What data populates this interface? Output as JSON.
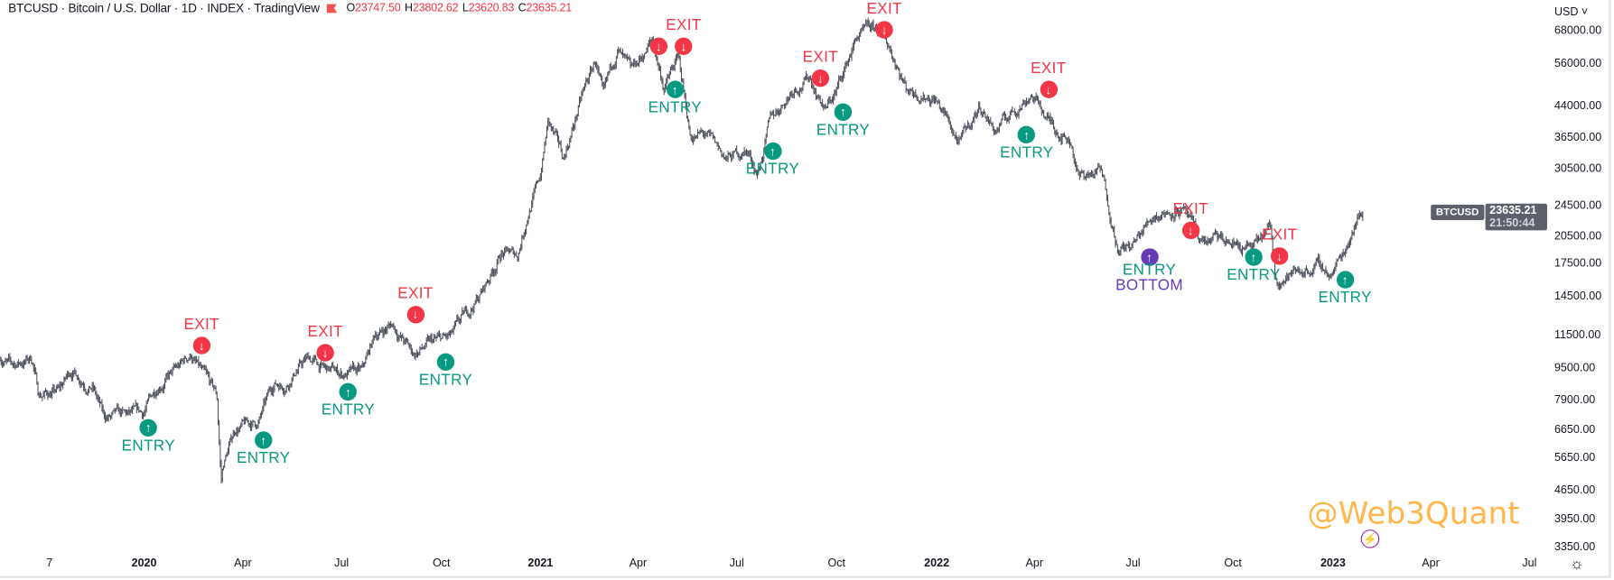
{
  "header": {
    "title": "BTCUSD · Bitcoin / U.S. Dollar · 1D · INDEX · TradingView",
    "open_label": "O",
    "open": "23747.50",
    "high_label": "H",
    "high": "23802.62",
    "low_label": "L",
    "low": "23620.83",
    "close_label": "C",
    "close": "23635.21"
  },
  "price_axis": {
    "currency": "USD ˅",
    "symbol_tag": "BTCUSD",
    "last_price": "23635.21",
    "countdown": "21:50:44"
  },
  "watermark": "@Web3Quant",
  "colors": {
    "up_signal": "#089981",
    "down_signal": "#f23645",
    "bottom_signal": "#673ab7",
    "candles": "#4a4e59",
    "watermark": "#ffb74d"
  },
  "chart_data": {
    "type": "candlestick",
    "title": "BTCUSD · Bitcoin / U.S. Dollar · 1D · INDEX · TradingView",
    "yscale": "log",
    "ylim": [
      3350,
      68000
    ],
    "yticks": [
      "68000.00",
      "56000.00",
      "44000.00",
      "36500.00",
      "30500.00",
      "24500.00",
      "20500.00",
      "17500.00",
      "14500.00",
      "11500.00",
      "9500.00",
      "7900.00",
      "6650.00",
      "5650.00",
      "4650.00",
      "3950.00",
      "3350.00"
    ],
    "ytick_values": [
      68000,
      56000,
      44000,
      36500,
      30500,
      24500,
      20500,
      17500,
      14500,
      11500,
      9500,
      7900,
      6650,
      5650,
      4650,
      3950,
      3350
    ],
    "xticks": [
      {
        "label": "7",
        "date": "2019-10-01",
        "year": false
      },
      {
        "label": "2020",
        "date": "2020-01-01",
        "year": true
      },
      {
        "label": "Apr",
        "date": "2020-04-01",
        "year": false
      },
      {
        "label": "Jul",
        "date": "2020-07-01",
        "year": false
      },
      {
        "label": "Oct",
        "date": "2020-10-01",
        "year": false
      },
      {
        "label": "2021",
        "date": "2021-01-01",
        "year": true
      },
      {
        "label": "Apr",
        "date": "2021-04-01",
        "year": false
      },
      {
        "label": "Jul",
        "date": "2021-07-01",
        "year": false
      },
      {
        "label": "Oct",
        "date": "2021-10-01",
        "year": false
      },
      {
        "label": "2022",
        "date": "2022-01-01",
        "year": true
      },
      {
        "label": "Apr",
        "date": "2022-04-01",
        "year": false
      },
      {
        "label": "Jul",
        "date": "2022-07-01",
        "year": false
      },
      {
        "label": "Oct",
        "date": "2022-10-01",
        "year": false
      },
      {
        "label": "2023",
        "date": "2023-01-01",
        "year": true
      },
      {
        "label": "Apr",
        "date": "2023-04-01",
        "year": false
      },
      {
        "label": "Jul",
        "date": "2023-07-01",
        "year": false
      }
    ],
    "price_path": [
      [
        "2019-08-20",
        10300
      ],
      [
        "2019-09-01",
        9600
      ],
      [
        "2019-09-20",
        10100
      ],
      [
        "2019-09-26",
        8200
      ],
      [
        "2019-10-15",
        8300
      ],
      [
        "2019-10-26",
        9400
      ],
      [
        "2019-11-15",
        8600
      ],
      [
        "2019-11-25",
        7100
      ],
      [
        "2019-12-15",
        7100
      ],
      [
        "2019-12-31",
        7200
      ],
      [
        "2020-01-15",
        8800
      ],
      [
        "2020-02-01",
        9400
      ],
      [
        "2020-02-13",
        10300
      ],
      [
        "2020-02-28",
        8700
      ],
      [
        "2020-03-08",
        8000
      ],
      [
        "2020-03-12",
        4900
      ],
      [
        "2020-03-14",
        5400
      ],
      [
        "2020-03-25",
        6700
      ],
      [
        "2020-04-15",
        6900
      ],
      [
        "2020-04-30",
        8700
      ],
      [
        "2020-05-10",
        8700
      ],
      [
        "2020-05-20",
        9500
      ],
      [
        "2020-06-01",
        10100
      ],
      [
        "2020-06-15",
        9400
      ],
      [
        "2020-07-01",
        9200
      ],
      [
        "2020-07-20",
        9200
      ],
      [
        "2020-08-01",
        11500
      ],
      [
        "2020-08-17",
        12300
      ],
      [
        "2020-09-05",
        10300
      ],
      [
        "2020-09-20",
        10900
      ],
      [
        "2020-10-10",
        11300
      ],
      [
        "2020-10-25",
        13000
      ],
      [
        "2020-11-10",
        15300
      ],
      [
        "2020-11-25",
        18700
      ],
      [
        "2020-12-10",
        18300
      ],
      [
        "2020-12-20",
        23800
      ],
      [
        "2020-12-31",
        29000
      ],
      [
        "2021-01-08",
        40000
      ],
      [
        "2021-01-22",
        32000
      ],
      [
        "2021-02-08",
        46000
      ],
      [
        "2021-02-21",
        57000
      ],
      [
        "2021-02-28",
        45000
      ],
      [
        "2021-03-13",
        61000
      ],
      [
        "2021-03-25",
        52000
      ],
      [
        "2021-04-14",
        64000
      ],
      [
        "2021-04-25",
        49000
      ],
      [
        "2021-05-08",
        58000
      ],
      [
        "2021-05-19",
        37000
      ],
      [
        "2021-06-01",
        37000
      ],
      [
        "2021-06-22",
        32000
      ],
      [
        "2021-07-10",
        34000
      ],
      [
        "2021-07-20",
        29800
      ],
      [
        "2021-08-01",
        40000
      ],
      [
        "2021-08-23",
        49500
      ],
      [
        "2021-09-06",
        52000
      ],
      [
        "2021-09-21",
        43000
      ],
      [
        "2021-10-01",
        48000
      ],
      [
        "2021-10-20",
        66000
      ],
      [
        "2021-11-10",
        68000
      ],
      [
        "2021-11-25",
        57000
      ],
      [
        "2021-12-04",
        49000
      ],
      [
        "2021-12-31",
        46300
      ],
      [
        "2022-01-22",
        35000
      ],
      [
        "2022-02-10",
        44000
      ],
      [
        "2022-02-24",
        38000
      ],
      [
        "2022-03-29",
        47500
      ],
      [
        "2022-04-15",
        40000
      ],
      [
        "2022-05-05",
        36000
      ],
      [
        "2022-05-12",
        29000
      ],
      [
        "2022-06-01",
        30000
      ],
      [
        "2022-06-18",
        19000
      ],
      [
        "2022-07-01",
        19300
      ],
      [
        "2022-07-20",
        23400
      ],
      [
        "2022-08-14",
        24400
      ],
      [
        "2022-08-30",
        20000
      ],
      [
        "2022-09-15",
        20000
      ],
      [
        "2022-10-20",
        19000
      ],
      [
        "2022-11-05",
        21300
      ],
      [
        "2022-11-09",
        16000
      ],
      [
        "2022-11-25",
        16500
      ],
      [
        "2022-12-15",
        17300
      ],
      [
        "2022-12-31",
        16500
      ],
      [
        "2023-01-12",
        19000
      ],
      [
        "2023-01-21",
        22700
      ],
      [
        "2023-01-29",
        23635.21
      ]
    ],
    "signals": [
      {
        "type": "entry",
        "label": "ENTRY",
        "date": "2020-01-05",
        "price": 6720
      },
      {
        "type": "exit",
        "label": "EXIT",
        "date": "2020-02-23",
        "price": 10850
      },
      {
        "type": "entry",
        "label": "ENTRY",
        "date": "2020-04-20",
        "price": 6250
      },
      {
        "type": "exit",
        "label": "EXIT",
        "date": "2020-06-16",
        "price": 10400
      },
      {
        "type": "entry",
        "label": "ENTRY",
        "date": "2020-07-07",
        "price": 8280
      },
      {
        "type": "exit",
        "label": "EXIT",
        "date": "2020-09-07",
        "price": 13000
      },
      {
        "type": "entry",
        "label": "ENTRY",
        "date": "2020-10-05",
        "price": 9860
      },
      {
        "type": "exit",
        "label": "",
        "date": "2021-04-20",
        "price": 62150
      },
      {
        "type": "exit",
        "label": "EXIT",
        "date": "2021-05-13",
        "price": 62150
      },
      {
        "type": "entry",
        "label": "ENTRY",
        "date": "2021-05-05",
        "price": 48300
      },
      {
        "type": "entry",
        "label": "ENTRY",
        "date": "2021-08-03",
        "price": 33700
      },
      {
        "type": "exit",
        "label": "EXIT",
        "date": "2021-09-16",
        "price": 51600
      },
      {
        "type": "entry",
        "label": "ENTRY",
        "date": "2021-10-07",
        "price": 42350
      },
      {
        "type": "exit",
        "label": "EXIT",
        "date": "2021-11-14",
        "price": 68400
      },
      {
        "type": "entry",
        "label": "ENTRY",
        "date": "2022-03-25",
        "price": 37100
      },
      {
        "type": "exit",
        "label": "EXIT",
        "date": "2022-04-14",
        "price": 48300
      },
      {
        "type": "bottom",
        "label": "ENTRY",
        "label2": "BOTTOM",
        "date": "2022-07-16",
        "price": 18170
      },
      {
        "type": "exit",
        "label": "EXIT",
        "date": "2022-08-23",
        "price": 21240
      },
      {
        "type": "entry",
        "label": "ENTRY",
        "date": "2022-10-20",
        "price": 18170
      },
      {
        "type": "exit",
        "label": "EXIT",
        "date": "2022-11-13",
        "price": 18260
      },
      {
        "type": "entry",
        "label": "ENTRY",
        "date": "2023-01-12",
        "price": 15920
      }
    ]
  }
}
